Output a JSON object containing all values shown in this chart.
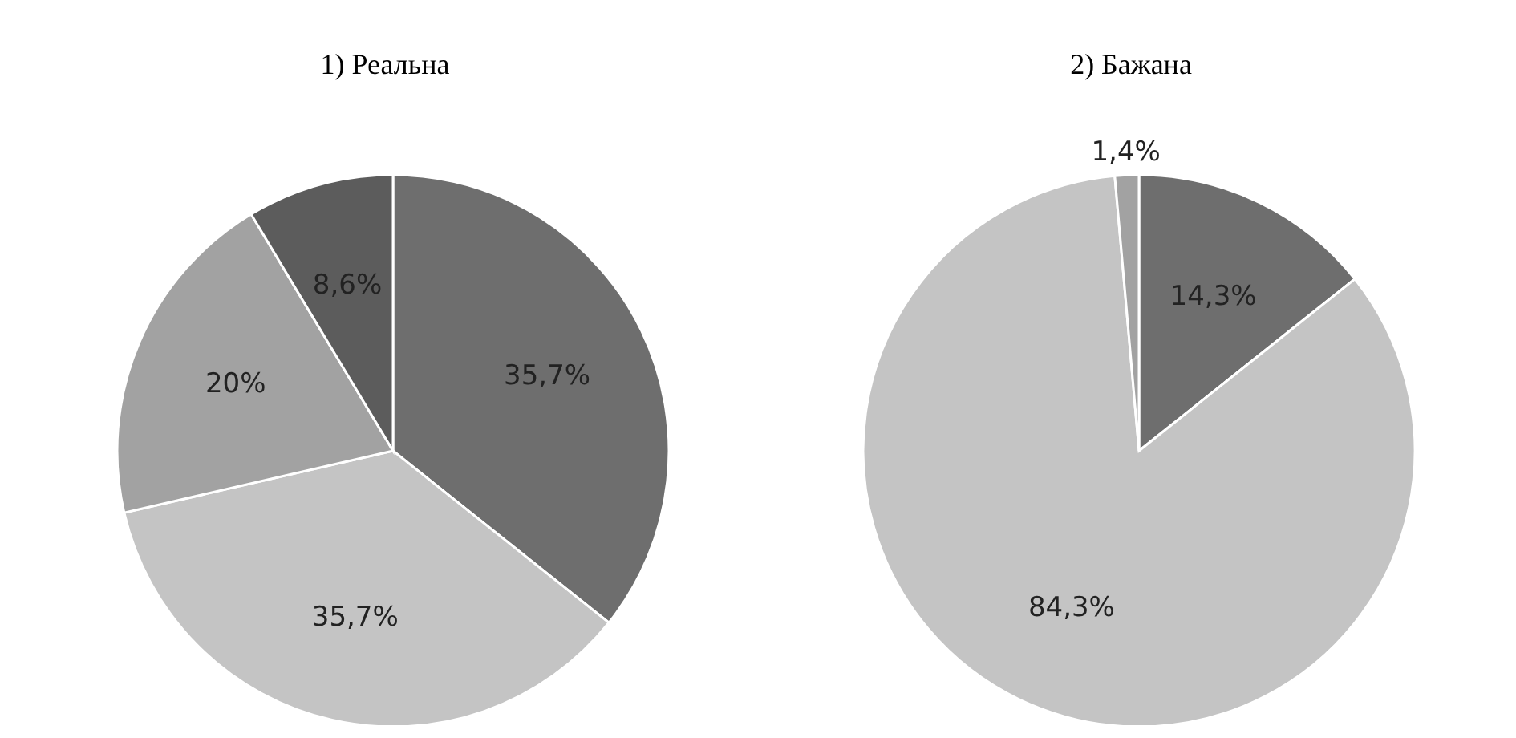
{
  "chart_data": [
    {
      "type": "pie",
      "title": "1) Реальна",
      "categories": [
        null,
        null,
        null,
        null
      ],
      "values": [
        35.7,
        35.7,
        20,
        8.6
      ],
      "colors": [
        "#6e6e6e",
        "#c4c4c4",
        "#a2a2a2",
        "#5c5c5c"
      ],
      "value_labels": [
        "35,7%",
        "35,7%",
        "20%",
        "8,6%"
      ]
    },
    {
      "type": "pie",
      "title": "2) Бажана",
      "categories": [
        null,
        null,
        null
      ],
      "values": [
        14.3,
        84.3,
        1.4
      ],
      "colors": [
        "#6e6e6e",
        "#c4c4c4",
        "#a2a2a2"
      ],
      "value_labels": [
        "14,3%",
        "84,3%",
        "1,4%"
      ]
    }
  ]
}
